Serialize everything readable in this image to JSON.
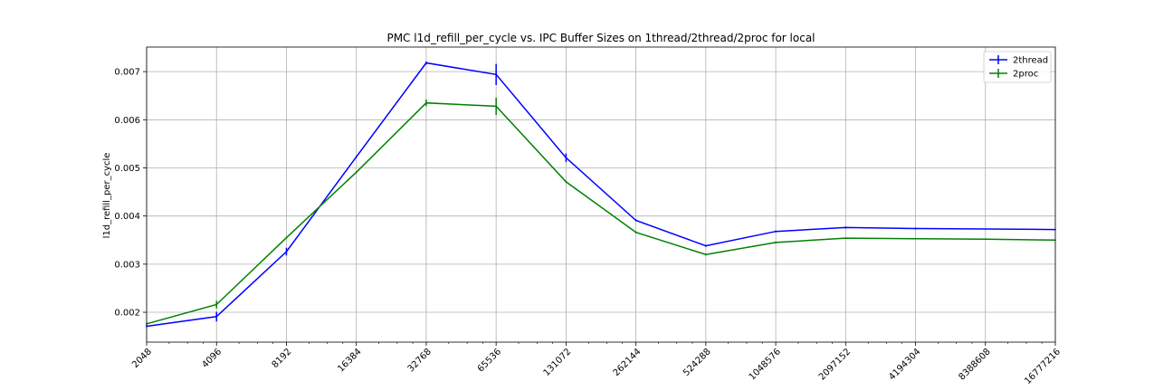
{
  "chart_data": {
    "type": "line",
    "title": "PMC l1d_refill_per_cycle vs. IPC Buffer Sizes on 1thread/2thread/2proc for local",
    "xlabel": "",
    "ylabel": "l1d_refill_per_cycle",
    "x_scale": "log2",
    "x": [
      2048,
      4096,
      8192,
      16384,
      32768,
      65536,
      131072,
      262144,
      524288,
      1048576,
      2097152,
      4194304,
      8388608,
      16777216
    ],
    "x_tick_labels": [
      "2048",
      "4096",
      "8192",
      "16384",
      "32768",
      "65536",
      "131072",
      "262144",
      "524288",
      "1048576",
      "2097152",
      "4194304",
      "8388608",
      "16777216"
    ],
    "xlim": [
      2048,
      16777216
    ],
    "ylim": [
      0.00138,
      0.00751
    ],
    "y_ticks": [
      0.002,
      0.003,
      0.004,
      0.005,
      0.006,
      0.007
    ],
    "y_tick_labels": [
      "0.002",
      "0.003",
      "0.004",
      "0.005",
      "0.006",
      "0.007"
    ],
    "grid": true,
    "legend_position": "top-right",
    "series": [
      {
        "name": "2thread",
        "color": "#0000ff",
        "values": [
          0.00171,
          0.00191,
          0.00326,
          0.00523,
          0.00718,
          0.00694,
          0.00521,
          0.00391,
          0.00338,
          0.00368,
          0.00376,
          0.00374,
          0.00373,
          0.00372
        ],
        "errors": [
          2e-05,
          0.0001,
          8e-05,
          2e-05,
          3e-05,
          0.00022,
          9e-05,
          2e-05,
          2e-05,
          2e-05,
          2e-05,
          2e-05,
          1e-05,
          1e-05
        ]
      },
      {
        "name": "2proc",
        "color": "#008000",
        "values": [
          0.00176,
          0.00216,
          0.00355,
          0.00491,
          0.00635,
          0.00628,
          0.00471,
          0.00366,
          0.0032,
          0.00345,
          0.00354,
          0.00353,
          0.00352,
          0.0035
        ],
        "errors": [
          2e-05,
          8e-05,
          2e-05,
          2e-05,
          7e-05,
          0.00018,
          2e-05,
          2e-05,
          2e-05,
          2e-05,
          1e-05,
          1e-05,
          1e-05,
          1e-05
        ]
      }
    ]
  }
}
